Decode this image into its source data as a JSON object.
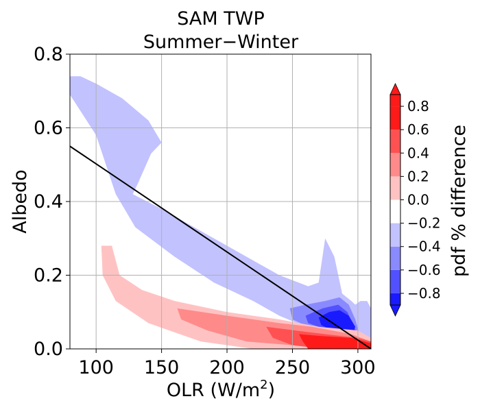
{
  "chart_data": {
    "type": "contour",
    "title": "SAM TWP",
    "subtitle": "Summer−Winter",
    "xlabel": "OLR (W/m",
    "xlabel_sup": "2",
    "xlabel_end": ")",
    "ylabel": "Albedo",
    "xlim": [
      80,
      310
    ],
    "ylim": [
      0.0,
      0.8
    ],
    "xticks": [
      100,
      150,
      200,
      250,
      300
    ],
    "yticks": [
      0.0,
      0.2,
      0.4,
      0.6,
      0.8
    ],
    "xtick_labels": [
      "100",
      "150",
      "200",
      "250",
      "300"
    ],
    "ytick_labels": [
      "0.0",
      "0.2",
      "0.4",
      "0.6",
      "0.8"
    ],
    "grid": true,
    "line": {
      "x": [
        80,
        310
      ],
      "y": [
        0.55,
        0.0
      ],
      "color": "#000000"
    },
    "colorbar": {
      "label": "pdf % difference",
      "levels": [
        -0.9,
        -0.8,
        -0.6,
        -0.4,
        -0.2,
        0.0,
        0.2,
        0.4,
        0.6,
        0.8,
        0.9
      ],
      "tick_labels": [
        "−0.8",
        "−0.6",
        "−0.4",
        "−0.2",
        "0.0",
        "0.2",
        "0.4",
        "0.6",
        "0.8"
      ],
      "tick_values": [
        -0.8,
        -0.6,
        -0.4,
        -0.2,
        0.0,
        0.2,
        0.4,
        0.6,
        0.8
      ],
      "colors": [
        "#1a1aff",
        "#5151ff",
        "#8a8aff",
        "#c2c2ff",
        "#ffffff",
        "#ffc2c2",
        "#ff8a8a",
        "#ff5151",
        "#ff1a1a"
      ],
      "extend": "both"
    },
    "regions": [
      {
        "level": -0.2,
        "color": "#c2c2ff",
        "points": [
          [
            80,
            0.74
          ],
          [
            88,
            0.74
          ],
          [
            100,
            0.72
          ],
          [
            120,
            0.68
          ],
          [
            140,
            0.62
          ],
          [
            150,
            0.56
          ],
          [
            142,
            0.53
          ],
          [
            132,
            0.45
          ],
          [
            128,
            0.42
          ],
          [
            150,
            0.38
          ],
          [
            200,
            0.28
          ],
          [
            240,
            0.2
          ],
          [
            262,
            0.17
          ],
          [
            270,
            0.18
          ],
          [
            275,
            0.3
          ],
          [
            282,
            0.25
          ],
          [
            288,
            0.15
          ],
          [
            295,
            0.13
          ],
          [
            298,
            0.12
          ],
          [
            302,
            0.13
          ],
          [
            307,
            0.13
          ],
          [
            310,
            0.11
          ],
          [
            310,
            0.0
          ],
          [
            300,
            0.02
          ],
          [
            280,
            0.04
          ],
          [
            260,
            0.06
          ],
          [
            240,
            0.09
          ],
          [
            220,
            0.13
          ],
          [
            190,
            0.18
          ],
          [
            160,
            0.25
          ],
          [
            130,
            0.33
          ],
          [
            115,
            0.42
          ],
          [
            100,
            0.58
          ],
          [
            80,
            0.69
          ]
        ]
      },
      {
        "level": -0.4,
        "color": "#8a8aff",
        "points": [
          [
            248,
            0.11
          ],
          [
            260,
            0.12
          ],
          [
            275,
            0.13
          ],
          [
            286,
            0.14
          ],
          [
            293,
            0.12
          ],
          [
            298,
            0.08
          ],
          [
            302,
            0.03
          ],
          [
            298,
            0.02
          ],
          [
            286,
            0.03
          ],
          [
            275,
            0.04
          ],
          [
            262,
            0.06
          ],
          [
            250,
            0.08
          ]
        ]
      },
      {
        "level": -0.6,
        "color": "#5151ff",
        "points": [
          [
            260,
            0.09
          ],
          [
            273,
            0.11
          ],
          [
            285,
            0.12
          ],
          [
            292,
            0.1
          ],
          [
            297,
            0.06
          ],
          [
            300,
            0.04
          ],
          [
            293,
            0.03
          ],
          [
            283,
            0.04
          ],
          [
            270,
            0.06
          ],
          [
            262,
            0.07
          ]
        ]
      },
      {
        "level": -0.8,
        "color": "#1a1aff",
        "points": [
          [
            270,
            0.085
          ],
          [
            278,
            0.1
          ],
          [
            286,
            0.105
          ],
          [
            293,
            0.09
          ],
          [
            298,
            0.06
          ],
          [
            296,
            0.04
          ],
          [
            288,
            0.035
          ],
          [
            280,
            0.05
          ],
          [
            272,
            0.065
          ]
        ]
      },
      {
        "level": 0.2,
        "color": "#ffc2c2",
        "points": [
          [
            104,
            0.28
          ],
          [
            112,
            0.28
          ],
          [
            118,
            0.2
          ],
          [
            135,
            0.16
          ],
          [
            160,
            0.13
          ],
          [
            200,
            0.1
          ],
          [
            240,
            0.08
          ],
          [
            270,
            0.06
          ],
          [
            300,
            0.05
          ],
          [
            310,
            0.03
          ],
          [
            310,
            0.0
          ],
          [
            290,
            0.0
          ],
          [
            260,
            0.0
          ],
          [
            220,
            0.0
          ],
          [
            180,
            0.02
          ],
          [
            140,
            0.07
          ],
          [
            115,
            0.13
          ],
          [
            105,
            0.2
          ]
        ]
      },
      {
        "level": 0.4,
        "color": "#ff8a8a",
        "points": [
          [
            162,
            0.11
          ],
          [
            200,
            0.09
          ],
          [
            240,
            0.07
          ],
          [
            265,
            0.06
          ],
          [
            295,
            0.04
          ],
          [
            310,
            0.02
          ],
          [
            310,
            0.0
          ],
          [
            280,
            0.0
          ],
          [
            250,
            0.01
          ],
          [
            215,
            0.02
          ],
          [
            185,
            0.05
          ],
          [
            165,
            0.08
          ]
        ]
      },
      {
        "level": 0.6,
        "color": "#ff5151",
        "points": [
          [
            230,
            0.06
          ],
          [
            252,
            0.05
          ],
          [
            275,
            0.04
          ],
          [
            300,
            0.03
          ],
          [
            310,
            0.02
          ],
          [
            310,
            0.0
          ],
          [
            275,
            0.0
          ],
          [
            250,
            0.01
          ],
          [
            235,
            0.03
          ]
        ]
      },
      {
        "level": 0.8,
        "color": "#ff1a1a",
        "points": [
          [
            255,
            0.04
          ],
          [
            272,
            0.035
          ],
          [
            295,
            0.03
          ],
          [
            310,
            0.015
          ],
          [
            310,
            0.0
          ],
          [
            280,
            0.0
          ],
          [
            262,
            0.0
          ],
          [
            258,
            0.02
          ]
        ]
      }
    ]
  }
}
